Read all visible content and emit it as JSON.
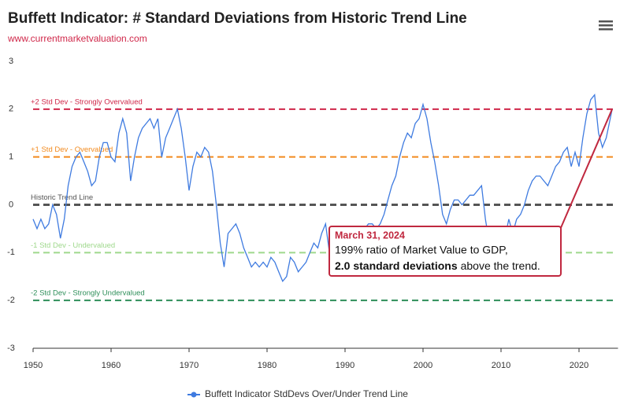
{
  "chart_data": {
    "type": "line",
    "title": "Buffett Indicator: # Standard Deviations from Historic Trend Line",
    "subtitle": "www.currentmarketvaluation.com",
    "xlim": [
      1950,
      2025
    ],
    "xticks": [
      1950,
      1960,
      1970,
      1980,
      1990,
      2000,
      2010,
      2020
    ],
    "ylim": [
      -3,
      3
    ],
    "yticks": [
      -3,
      -2,
      -1,
      0,
      1,
      2,
      3
    ],
    "reference_lines": [
      {
        "value": 2,
        "label": "+2 Std Dev - Strongly Overvalued",
        "color": "#d0284a"
      },
      {
        "value": 1,
        "label": "+1 Std Dev - Overvalued",
        "color": "#f28a1e"
      },
      {
        "value": 0,
        "label": "Historic Trend Line",
        "color": "#555555"
      },
      {
        "value": -1,
        "label": "-1 Std Dev - Undervalued",
        "color": "#9fd88c"
      },
      {
        "value": -2,
        "label": "-2 Std Dev - Strongly Undervalued",
        "color": "#2f8f5a"
      }
    ],
    "annotation": {
      "date": "March 31, 2024",
      "line1": "199% ratio of Market Value to GDP,",
      "bold": "2.0 standard deviations",
      "rest": "above the trend."
    },
    "x": [
      1950,
      1950.5,
      1951,
      1951.5,
      1952,
      1952.5,
      1953,
      1953.5,
      1954,
      1954.5,
      1955,
      1955.5,
      1956,
      1956.5,
      1957,
      1957.5,
      1958,
      1958.5,
      1959,
      1959.5,
      1960,
      1960.5,
      1961,
      1961.5,
      1962,
      1962.5,
      1963,
      1963.5,
      1964,
      1964.5,
      1965,
      1965.5,
      1966,
      1966.5,
      1967,
      1967.5,
      1968,
      1968.5,
      1969,
      1969.5,
      1970,
      1970.5,
      1971,
      1971.5,
      1972,
      1972.5,
      1973,
      1973.5,
      1974,
      1974.5,
      1975,
      1975.5,
      1976,
      1976.5,
      1977,
      1977.5,
      1978,
      1978.5,
      1979,
      1979.5,
      1980,
      1980.5,
      1981,
      1981.5,
      1982,
      1982.5,
      1983,
      1983.5,
      1984,
      1984.5,
      1985,
      1985.5,
      1986,
      1986.5,
      1987,
      1987.5,
      1988,
      1988.5,
      1989,
      1989.5,
      1990,
      1990.5,
      1991,
      1991.5,
      1992,
      1992.5,
      1993,
      1993.5,
      1994,
      1994.5,
      1995,
      1995.5,
      1996,
      1996.5,
      1997,
      1997.5,
      1998,
      1998.5,
      1999,
      1999.5,
      2000,
      2000.5,
      2001,
      2001.5,
      2002,
      2002.5,
      2003,
      2003.5,
      2004,
      2004.5,
      2005,
      2005.5,
      2006,
      2006.5,
      2007,
      2007.5,
      2008,
      2008.5,
      2009,
      2009.5,
      2010,
      2010.5,
      2011,
      2011.5,
      2012,
      2012.5,
      2013,
      2013.5,
      2014,
      2014.5,
      2015,
      2015.5,
      2016,
      2016.5,
      2017,
      2017.5,
      2018,
      2018.5,
      2019,
      2019.5,
      2020,
      2020.5,
      2021,
      2021.5,
      2022,
      2022.5,
      2023,
      2023.5,
      2024,
      2024.25
    ],
    "series": [
      {
        "name": "Buffett Indicator StdDevs Over/Under Trend Line",
        "color": "#3f7be0",
        "values": [
          -0.3,
          -0.5,
          -0.3,
          -0.5,
          -0.4,
          0.0,
          -0.2,
          -0.7,
          -0.3,
          0.4,
          0.8,
          1.0,
          1.1,
          0.9,
          0.7,
          0.4,
          0.5,
          1.0,
          1.3,
          1.3,
          1.0,
          0.9,
          1.5,
          1.8,
          1.5,
          0.5,
          1.0,
          1.4,
          1.6,
          1.7,
          1.8,
          1.6,
          1.8,
          1.0,
          1.4,
          1.6,
          1.8,
          2.0,
          1.6,
          1.0,
          0.3,
          0.8,
          1.1,
          1.0,
          1.2,
          1.1,
          0.7,
          0.0,
          -0.8,
          -1.3,
          -0.6,
          -0.5,
          -0.4,
          -0.6,
          -0.9,
          -1.1,
          -1.3,
          -1.2,
          -1.3,
          -1.2,
          -1.3,
          -1.1,
          -1.2,
          -1.4,
          -1.6,
          -1.5,
          -1.1,
          -1.2,
          -1.4,
          -1.3,
          -1.2,
          -1.0,
          -0.8,
          -0.9,
          -0.6,
          -0.4,
          -1.0,
          -0.9,
          -0.8,
          -0.6,
          -0.8,
          -0.9,
          -0.7,
          -0.6,
          -0.5,
          -0.5,
          -0.4,
          -0.4,
          -0.5,
          -0.4,
          -0.2,
          0.1,
          0.4,
          0.6,
          1.0,
          1.3,
          1.5,
          1.4,
          1.7,
          1.8,
          2.1,
          1.8,
          1.3,
          0.9,
          0.4,
          -0.2,
          -0.4,
          -0.1,
          0.1,
          0.1,
          0.0,
          0.1,
          0.2,
          0.2,
          0.3,
          0.4,
          -0.3,
          -0.8,
          -1.5,
          -0.9,
          -0.6,
          -0.7,
          -0.3,
          -0.6,
          -0.3,
          -0.2,
          0.0,
          0.3,
          0.5,
          0.6,
          0.6,
          0.5,
          0.4,
          0.6,
          0.8,
          0.9,
          1.1,
          1.2,
          0.8,
          1.1,
          0.8,
          1.4,
          1.9,
          2.2,
          2.3,
          1.5,
          1.2,
          1.4,
          1.8,
          2.0
        ]
      }
    ]
  }
}
